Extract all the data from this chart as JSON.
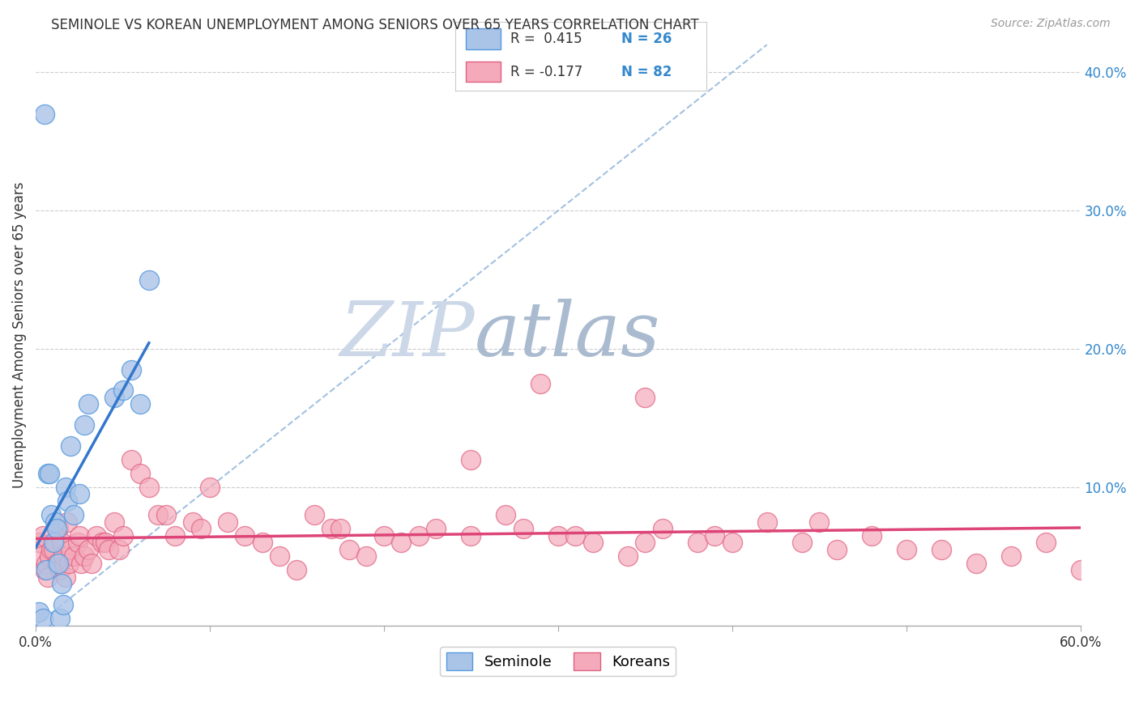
{
  "title": "SEMINOLE VS KOREAN UNEMPLOYMENT AMONG SENIORS OVER 65 YEARS CORRELATION CHART",
  "source": "Source: ZipAtlas.com",
  "ylabel": "Unemployment Among Seniors over 65 years",
  "xlim": [
    0.0,
    0.6
  ],
  "ylim": [
    0.0,
    0.42
  ],
  "x_ticks": [
    0.0,
    0.1,
    0.2,
    0.3,
    0.4,
    0.5,
    0.6
  ],
  "x_tick_labels": [
    "0.0%",
    "",
    "",
    "",
    "",
    "",
    "60.0%"
  ],
  "y_ticks_right": [
    0.0,
    0.1,
    0.2,
    0.3,
    0.4
  ],
  "y_tick_labels_right": [
    "",
    "10.0%",
    "20.0%",
    "30.0%",
    "40.0%"
  ],
  "seminole_R": 0.415,
  "seminole_N": 26,
  "korean_R": -0.177,
  "korean_N": 82,
  "seminole_color": "#aac4e8",
  "seminole_edge_color": "#5599dd",
  "korean_color": "#f4aabb",
  "korean_edge_color": "#e06080",
  "seminole_line_color": "#3377cc",
  "korean_line_color": "#dd4477",
  "diagonal_color": "#99bbdd",
  "watermark_zip_color": "#ccd8e8",
  "watermark_atlas_color": "#aabbd0",
  "background_color": "#ffffff",
  "grid_color": "#cccccc",
  "legend_text_color": "#333333",
  "legend_n_color": "#3388cc",
  "title_color": "#333333",
  "source_color": "#999999",
  "ylabel_color": "#333333",
  "right_tick_color": "#3388cc",
  "seminole_x": [
    0.002,
    0.004,
    0.005,
    0.006,
    0.007,
    0.008,
    0.009,
    0.01,
    0.011,
    0.012,
    0.013,
    0.014,
    0.015,
    0.016,
    0.017,
    0.018,
    0.02,
    0.022,
    0.025,
    0.028,
    0.03,
    0.045,
    0.05,
    0.055,
    0.06,
    0.065
  ],
  "seminole_y": [
    0.01,
    0.005,
    0.37,
    0.04,
    0.11,
    0.11,
    0.08,
    0.06,
    0.075,
    0.07,
    0.045,
    0.005,
    0.03,
    0.015,
    0.1,
    0.09,
    0.13,
    0.08,
    0.095,
    0.145,
    0.16,
    0.165,
    0.17,
    0.185,
    0.16,
    0.25
  ],
  "korean_x": [
    0.002,
    0.003,
    0.004,
    0.005,
    0.006,
    0.007,
    0.008,
    0.009,
    0.01,
    0.011,
    0.012,
    0.013,
    0.014,
    0.015,
    0.016,
    0.017,
    0.018,
    0.019,
    0.02,
    0.022,
    0.024,
    0.025,
    0.026,
    0.028,
    0.03,
    0.032,
    0.035,
    0.038,
    0.04,
    0.042,
    0.045,
    0.048,
    0.05,
    0.055,
    0.06,
    0.065,
    0.07,
    0.075,
    0.08,
    0.09,
    0.095,
    0.1,
    0.11,
    0.12,
    0.13,
    0.14,
    0.15,
    0.16,
    0.17,
    0.175,
    0.18,
    0.19,
    0.2,
    0.21,
    0.22,
    0.23,
    0.25,
    0.27,
    0.28,
    0.29,
    0.3,
    0.31,
    0.32,
    0.34,
    0.35,
    0.36,
    0.38,
    0.39,
    0.4,
    0.42,
    0.44,
    0.46,
    0.48,
    0.5,
    0.52,
    0.54,
    0.56,
    0.58,
    0.6,
    0.45,
    0.35,
    0.25
  ],
  "korean_y": [
    0.06,
    0.05,
    0.065,
    0.04,
    0.045,
    0.035,
    0.05,
    0.055,
    0.055,
    0.06,
    0.045,
    0.07,
    0.04,
    0.06,
    0.05,
    0.035,
    0.075,
    0.045,
    0.055,
    0.05,
    0.06,
    0.065,
    0.045,
    0.05,
    0.055,
    0.045,
    0.065,
    0.06,
    0.06,
    0.055,
    0.075,
    0.055,
    0.065,
    0.12,
    0.11,
    0.1,
    0.08,
    0.08,
    0.065,
    0.075,
    0.07,
    0.1,
    0.075,
    0.065,
    0.06,
    0.05,
    0.04,
    0.08,
    0.07,
    0.07,
    0.055,
    0.05,
    0.065,
    0.06,
    0.065,
    0.07,
    0.065,
    0.08,
    0.07,
    0.175,
    0.065,
    0.065,
    0.06,
    0.05,
    0.06,
    0.07,
    0.06,
    0.065,
    0.06,
    0.075,
    0.06,
    0.055,
    0.065,
    0.055,
    0.055,
    0.045,
    0.05,
    0.06,
    0.04,
    0.075,
    0.165,
    0.12
  ]
}
